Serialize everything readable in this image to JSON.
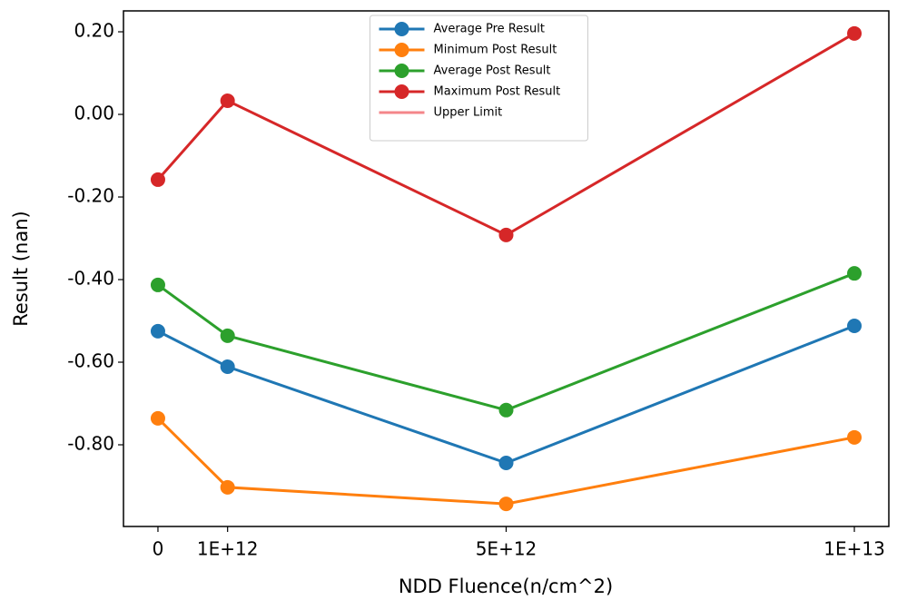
{
  "chart_data": {
    "type": "line",
    "xlabel": "NDD Fluence(n/cm^2)",
    "ylabel": "Result (nan)",
    "x": [
      0,
      1000000000000,
      5000000000000,
      10000000000000
    ],
    "series": [
      {
        "name": "Average Pre Result",
        "color": "#1f77b4",
        "values": [
          -0.525,
          -0.611,
          -0.844,
          -0.512
        ]
      },
      {
        "name": "Minimum Post Result",
        "color": "#ff7f0e",
        "values": [
          -0.736,
          -0.903,
          -0.943,
          -0.782
        ]
      },
      {
        "name": "Average Post Result",
        "color": "#2ca02c",
        "values": [
          -0.413,
          -0.536,
          -0.716,
          -0.385
        ]
      },
      {
        "name": "Maximum Post Result",
        "color": "#d62728",
        "values": [
          -0.158,
          0.033,
          -0.292,
          0.196
        ]
      },
      {
        "name": "Upper Limit",
        "color": "#f4868a",
        "values": [
          null,
          null,
          null,
          null
        ]
      }
    ],
    "xlim": [
      -495000000000,
      10495000000000
    ],
    "xticks": [
      0,
      {
        "value": 1000000000000,
        "label": "1E+12"
      },
      {
        "value": 5000000000000,
        "label": "5E+12"
      },
      {
        "value": 10000000000000,
        "label": "1E+13"
      }
    ],
    "ylim": [
      -0.9978,
      0.2506
    ],
    "yticks": [
      {
        "value": 0.2,
        "label": "0.20"
      },
      {
        "value": 0,
        "label": "0.00"
      },
      {
        "value": -0.2,
        "label": "-0.20"
      },
      {
        "value": -0.4,
        "label": "-0.40"
      },
      {
        "value": -0.6,
        "label": "-0.60"
      },
      {
        "value": -0.8,
        "label": "-0.80"
      }
    ],
    "legend": "upper center"
  }
}
